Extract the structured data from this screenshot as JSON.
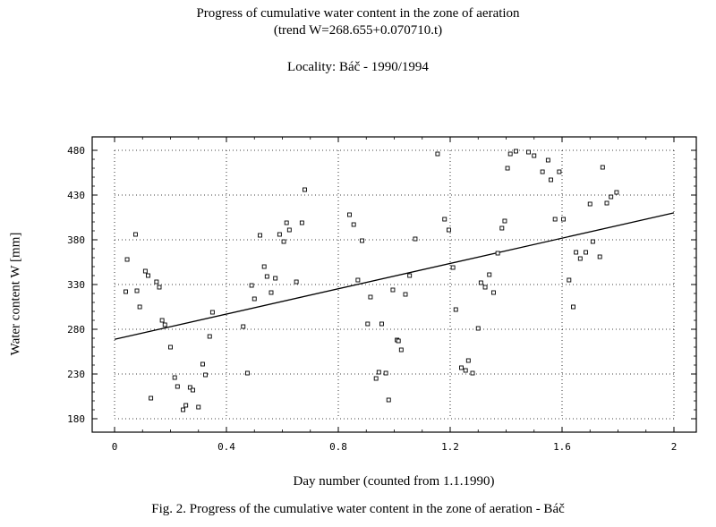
{
  "chart_data": {
    "type": "scatter",
    "title": "Progress of cumulative water content in the zone of aeration",
    "subtitle": "(trend W=268.655+0.070710.t)",
    "locality": "Locality: Báč - 1990/1994",
    "xlabel": "Day number (counted from 1.1.1990)",
    "ylabel": "Water content W [mm]",
    "caption": "Fig. 2. Progress of the cumulative water content in the zone of aeration - Báč",
    "xlim": [
      0,
      2
    ],
    "ylim": [
      180,
      480
    ],
    "x_ticks": [
      "0",
      "0.4",
      "0.8",
      "1.2",
      "1.6",
      "2"
    ],
    "y_ticks": [
      "180",
      "230",
      "280",
      "330",
      "380",
      "430",
      "480"
    ],
    "grid": true,
    "trend": {
      "x0": 0,
      "y0": 268.7,
      "x1": 2,
      "y1": 410.1
    },
    "series": [
      {
        "values": [
          [
            0.045,
            358
          ],
          [
            0.04,
            322
          ],
          [
            0.075,
            386
          ],
          [
            0.08,
            323
          ],
          [
            0.09,
            305
          ],
          [
            0.11,
            345
          ],
          [
            0.12,
            340
          ],
          [
            0.13,
            203
          ],
          [
            0.15,
            333
          ],
          [
            0.16,
            327
          ],
          [
            0.17,
            290
          ],
          [
            0.18,
            285
          ],
          [
            0.2,
            260
          ],
          [
            0.215,
            226
          ],
          [
            0.225,
            216
          ],
          [
            0.245,
            190
          ],
          [
            0.255,
            195
          ],
          [
            0.27,
            215
          ],
          [
            0.28,
            212
          ],
          [
            0.3,
            193
          ],
          [
            0.315,
            241
          ],
          [
            0.325,
            229
          ],
          [
            0.34,
            272
          ],
          [
            0.35,
            299
          ],
          [
            0.46,
            283
          ],
          [
            0.475,
            231
          ],
          [
            0.49,
            329
          ],
          [
            0.5,
            314
          ],
          [
            0.52,
            385
          ],
          [
            0.535,
            350
          ],
          [
            0.545,
            339
          ],
          [
            0.56,
            321
          ],
          [
            0.575,
            337
          ],
          [
            0.59,
            386
          ],
          [
            0.605,
            378
          ],
          [
            0.615,
            399
          ],
          [
            0.625,
            391
          ],
          [
            0.65,
            333
          ],
          [
            0.67,
            399
          ],
          [
            0.68,
            436
          ],
          [
            0.84,
            408
          ],
          [
            0.855,
            397
          ],
          [
            0.87,
            335
          ],
          [
            0.885,
            379
          ],
          [
            0.905,
            286
          ],
          [
            0.915,
            316
          ],
          [
            0.935,
            225
          ],
          [
            0.945,
            232
          ],
          [
            0.955,
            286
          ],
          [
            0.97,
            231
          ],
          [
            0.98,
            201
          ],
          [
            0.995,
            324
          ],
          [
            1.01,
            268
          ],
          [
            1.015,
            267
          ],
          [
            1.025,
            257
          ],
          [
            1.04,
            319
          ],
          [
            1.055,
            340
          ],
          [
            1.075,
            381
          ],
          [
            1.155,
            476
          ],
          [
            1.18,
            403
          ],
          [
            1.195,
            391
          ],
          [
            1.21,
            349
          ],
          [
            1.22,
            302
          ],
          [
            1.24,
            237
          ],
          [
            1.255,
            234
          ],
          [
            1.265,
            245
          ],
          [
            1.28,
            231
          ],
          [
            1.3,
            281
          ],
          [
            1.31,
            332
          ],
          [
            1.325,
            327
          ],
          [
            1.34,
            341
          ],
          [
            1.355,
            321
          ],
          [
            1.37,
            365
          ],
          [
            1.385,
            393
          ],
          [
            1.395,
            401
          ],
          [
            1.405,
            460
          ],
          [
            1.415,
            476
          ],
          [
            1.435,
            479
          ],
          [
            1.48,
            478
          ],
          [
            1.5,
            474
          ],
          [
            1.53,
            456
          ],
          [
            1.55,
            469
          ],
          [
            1.56,
            447
          ],
          [
            1.575,
            403
          ],
          [
            1.59,
            456
          ],
          [
            1.605,
            403
          ],
          [
            1.625,
            335
          ],
          [
            1.64,
            305
          ],
          [
            1.65,
            366
          ],
          [
            1.665,
            359
          ],
          [
            1.685,
            366
          ],
          [
            1.7,
            420
          ],
          [
            1.71,
            378
          ],
          [
            1.735,
            361
          ],
          [
            1.745,
            461
          ],
          [
            1.76,
            421
          ],
          [
            1.775,
            428
          ],
          [
            1.795,
            433
          ]
        ]
      }
    ]
  }
}
